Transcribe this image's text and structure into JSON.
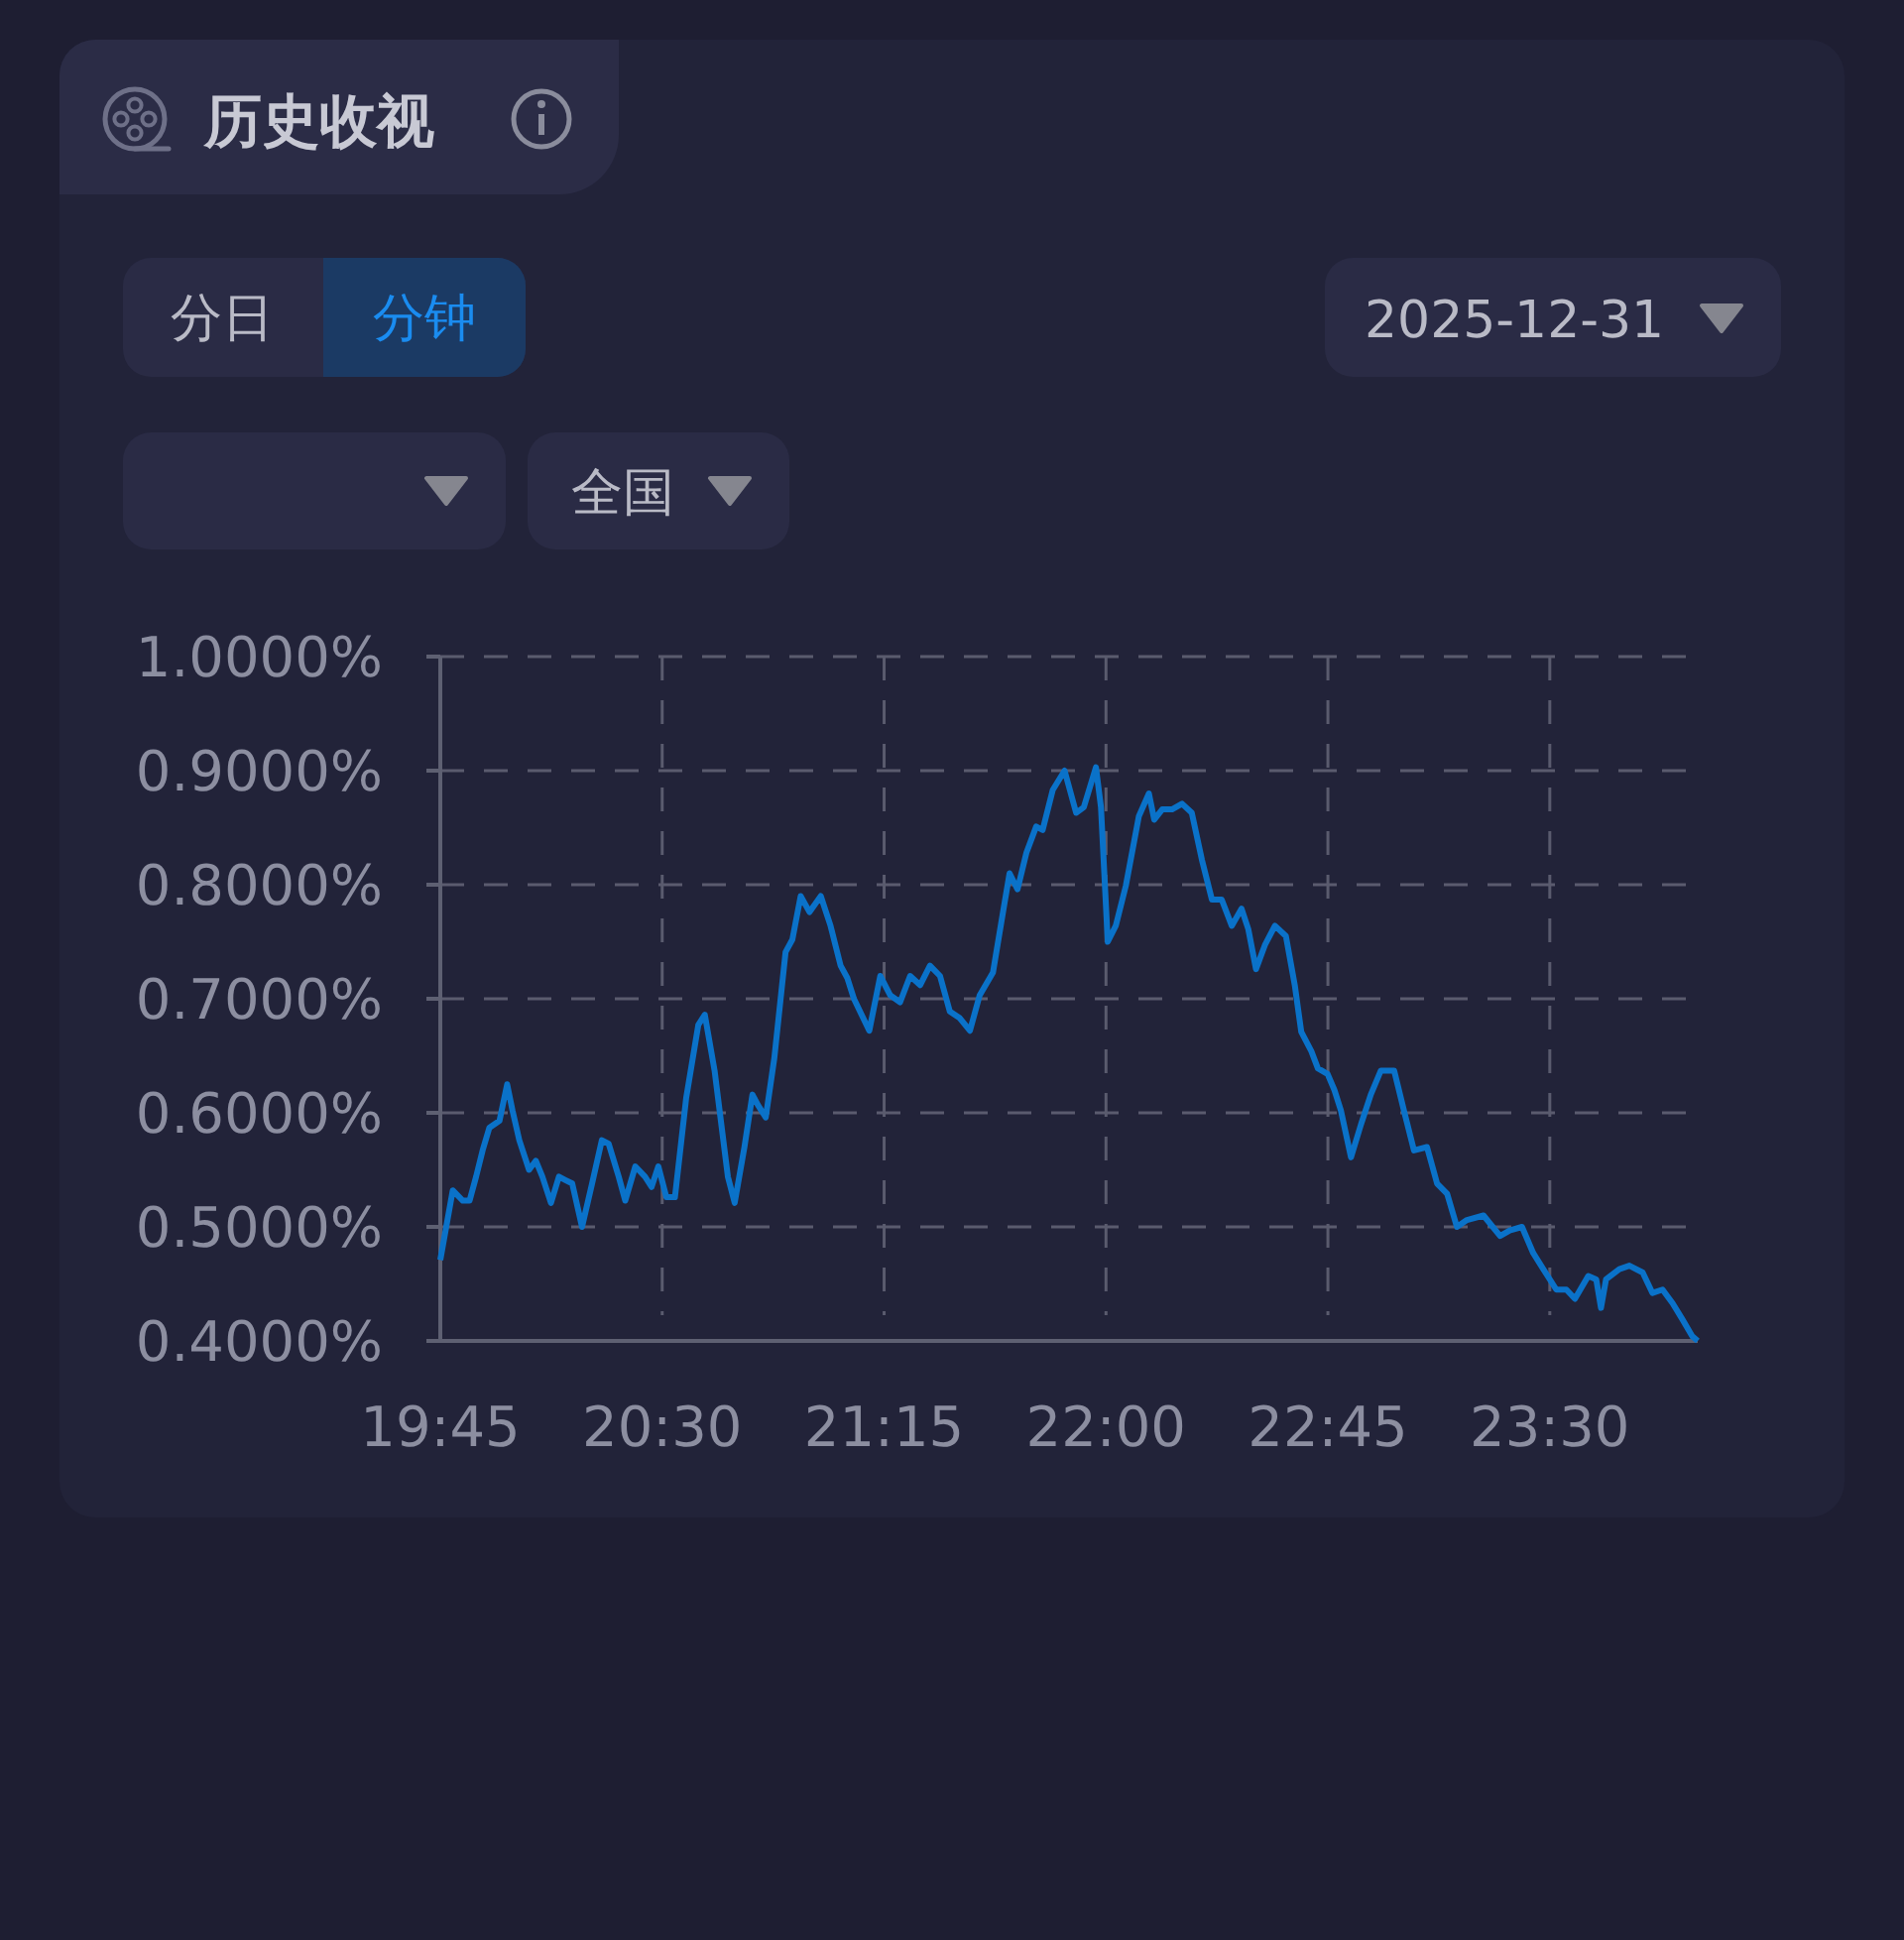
{
  "chart_data": {
    "type": "line",
    "title": "历史收视",
    "annotations": [
      "分日",
      "分钟",
      "2025-12-31",
      "全国"
    ],
    "x": [
      19.75,
      19.792,
      19.826,
      19.849,
      19.871,
      19.893,
      19.916,
      19.95,
      19.976,
      19.994,
      20.017,
      20.05,
      20.073,
      20.095,
      20.124,
      20.151,
      20.173,
      20.196,
      20.229,
      20.263,
      20.296,
      20.319,
      20.353,
      20.375,
      20.409,
      20.442,
      20.464,
      20.487,
      20.514,
      20.543,
      20.581,
      20.622,
      20.644,
      20.677,
      20.722,
      20.745,
      20.778,
      20.805,
      20.823,
      20.85,
      20.879,
      20.917,
      20.94,
      20.968,
      20.998,
      21.036,
      21.069,
      21.103,
      21.126,
      21.148,
      21.2,
      21.237,
      21.271,
      21.304,
      21.338,
      21.372,
      21.405,
      21.439,
      21.472,
      21.506,
      21.54,
      21.573,
      21.618,
      21.652,
      21.674,
      21.701,
      21.731,
      21.764,
      21.786,
      21.82,
      21.86,
      21.899,
      21.925,
      21.966,
      21.983,
      22.006,
      22.033,
      22.067,
      22.111,
      22.145,
      22.163,
      22.19,
      22.223,
      22.257,
      22.29,
      22.324,
      22.358,
      22.391,
      22.425,
      22.458,
      22.481,
      22.507,
      22.537,
      22.571,
      22.608,
      22.638,
      22.66,
      22.694,
      22.716,
      22.749,
      22.772,
      22.794,
      22.828,
      22.862,
      22.895,
      22.929,
      22.974,
      23.007,
      23.041,
      23.085,
      23.119,
      23.153,
      23.186,
      23.22,
      23.276,
      23.332,
      23.366,
      23.406,
      23.444,
      23.478,
      23.522,
      23.556,
      23.585,
      23.63,
      23.657,
      23.673,
      23.69,
      23.735,
      23.769,
      23.814,
      23.847,
      23.881,
      23.915,
      23.948,
      23.982,
      24.0
    ],
    "series": [
      {
        "color": "#0a72c9",
        "values": [
          0.471,
          0.532,
          0.523,
          0.523,
          0.544,
          0.567,
          0.587,
          0.593,
          0.625,
          0.602,
          0.576,
          0.55,
          0.558,
          0.544,
          0.521,
          0.544,
          0.541,
          0.538,
          0.5,
          0.538,
          0.576,
          0.573,
          0.544,
          0.523,
          0.553,
          0.544,
          0.535,
          0.553,
          0.526,
          0.526,
          0.613,
          0.677,
          0.686,
          0.637,
          0.544,
          0.521,
          0.57,
          0.616,
          0.607,
          0.596,
          0.648,
          0.741,
          0.752,
          0.79,
          0.776,
          0.79,
          0.764,
          0.729,
          0.718,
          0.7,
          0.672,
          0.72,
          0.703,
          0.697,
          0.72,
          0.712,
          0.729,
          0.72,
          0.689,
          0.683,
          0.672,
          0.703,
          0.723,
          0.776,
          0.81,
          0.796,
          0.828,
          0.851,
          0.848,
          0.883,
          0.9,
          0.863,
          0.868,
          0.903,
          0.868,
          0.75,
          0.764,
          0.799,
          0.86,
          0.88,
          0.857,
          0.866,
          0.866,
          0.871,
          0.863,
          0.822,
          0.787,
          0.787,
          0.764,
          0.779,
          0.761,
          0.726,
          0.747,
          0.764,
          0.755,
          0.712,
          0.671,
          0.654,
          0.639,
          0.634,
          0.62,
          0.602,
          0.561,
          0.59,
          0.616,
          0.637,
          0.637,
          0.602,
          0.567,
          0.57,
          0.538,
          0.529,
          0.5,
          0.506,
          0.51,
          0.492,
          0.497,
          0.5,
          0.477,
          0.463,
          0.445,
          0.445,
          0.437,
          0.457,
          0.454,
          0.429,
          0.454,
          0.463,
          0.466,
          0.46,
          0.442,
          0.445,
          0.433,
          0.419,
          0.404,
          0.4
        ]
      }
    ],
    "xlim": [
      19.75,
      24.0
    ],
    "xticks": [
      {
        "value": 19.75,
        "label": "19:45"
      },
      {
        "value": 20.5,
        "label": "20:30"
      },
      {
        "value": 21.25,
        "label": "21:15"
      },
      {
        "value": 22.0,
        "label": "22:00"
      },
      {
        "value": 22.75,
        "label": "22:45"
      },
      {
        "value": 23.5,
        "label": "23:30"
      }
    ],
    "ylim": [
      0.4,
      1.0
    ],
    "yticks": [
      {
        "value": 0.4,
        "label": "0.4000%"
      },
      {
        "value": 0.5,
        "label": "0.5000%"
      },
      {
        "value": 0.6,
        "label": "0.6000%"
      },
      {
        "value": 0.7,
        "label": "0.7000%"
      },
      {
        "value": 0.8,
        "label": "0.8000%"
      },
      {
        "value": 0.9,
        "label": "0.9000%"
      },
      {
        "value": 1.0,
        "label": "1.0000%"
      }
    ],
    "grid": true
  }
}
